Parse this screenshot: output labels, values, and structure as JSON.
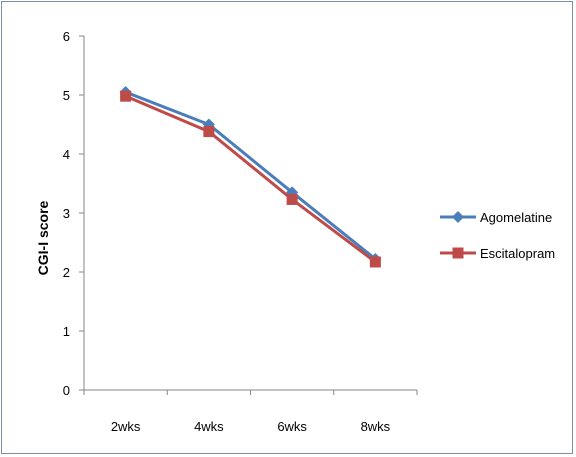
{
  "chart_data": {
    "type": "line",
    "title": "",
    "xlabel": "",
    "ylabel": "CGI-I score",
    "categories": [
      "2wks",
      "4wks",
      "6wks",
      "8wks"
    ],
    "y_ticks": [
      "0",
      "1",
      "2",
      "3",
      "4",
      "5",
      "6"
    ],
    "ylim": [
      0,
      6
    ],
    "grid": false,
    "legend_position": "right",
    "series": [
      {
        "name": "Agomelatine",
        "values": [
          5.05,
          4.5,
          3.35,
          2.22
        ],
        "color": "#4a7ebb",
        "marker": "diamond"
      },
      {
        "name": "Escitalopram",
        "values": [
          4.98,
          4.38,
          3.23,
          2.17
        ],
        "color": "#be4b48",
        "marker": "square"
      }
    ]
  }
}
